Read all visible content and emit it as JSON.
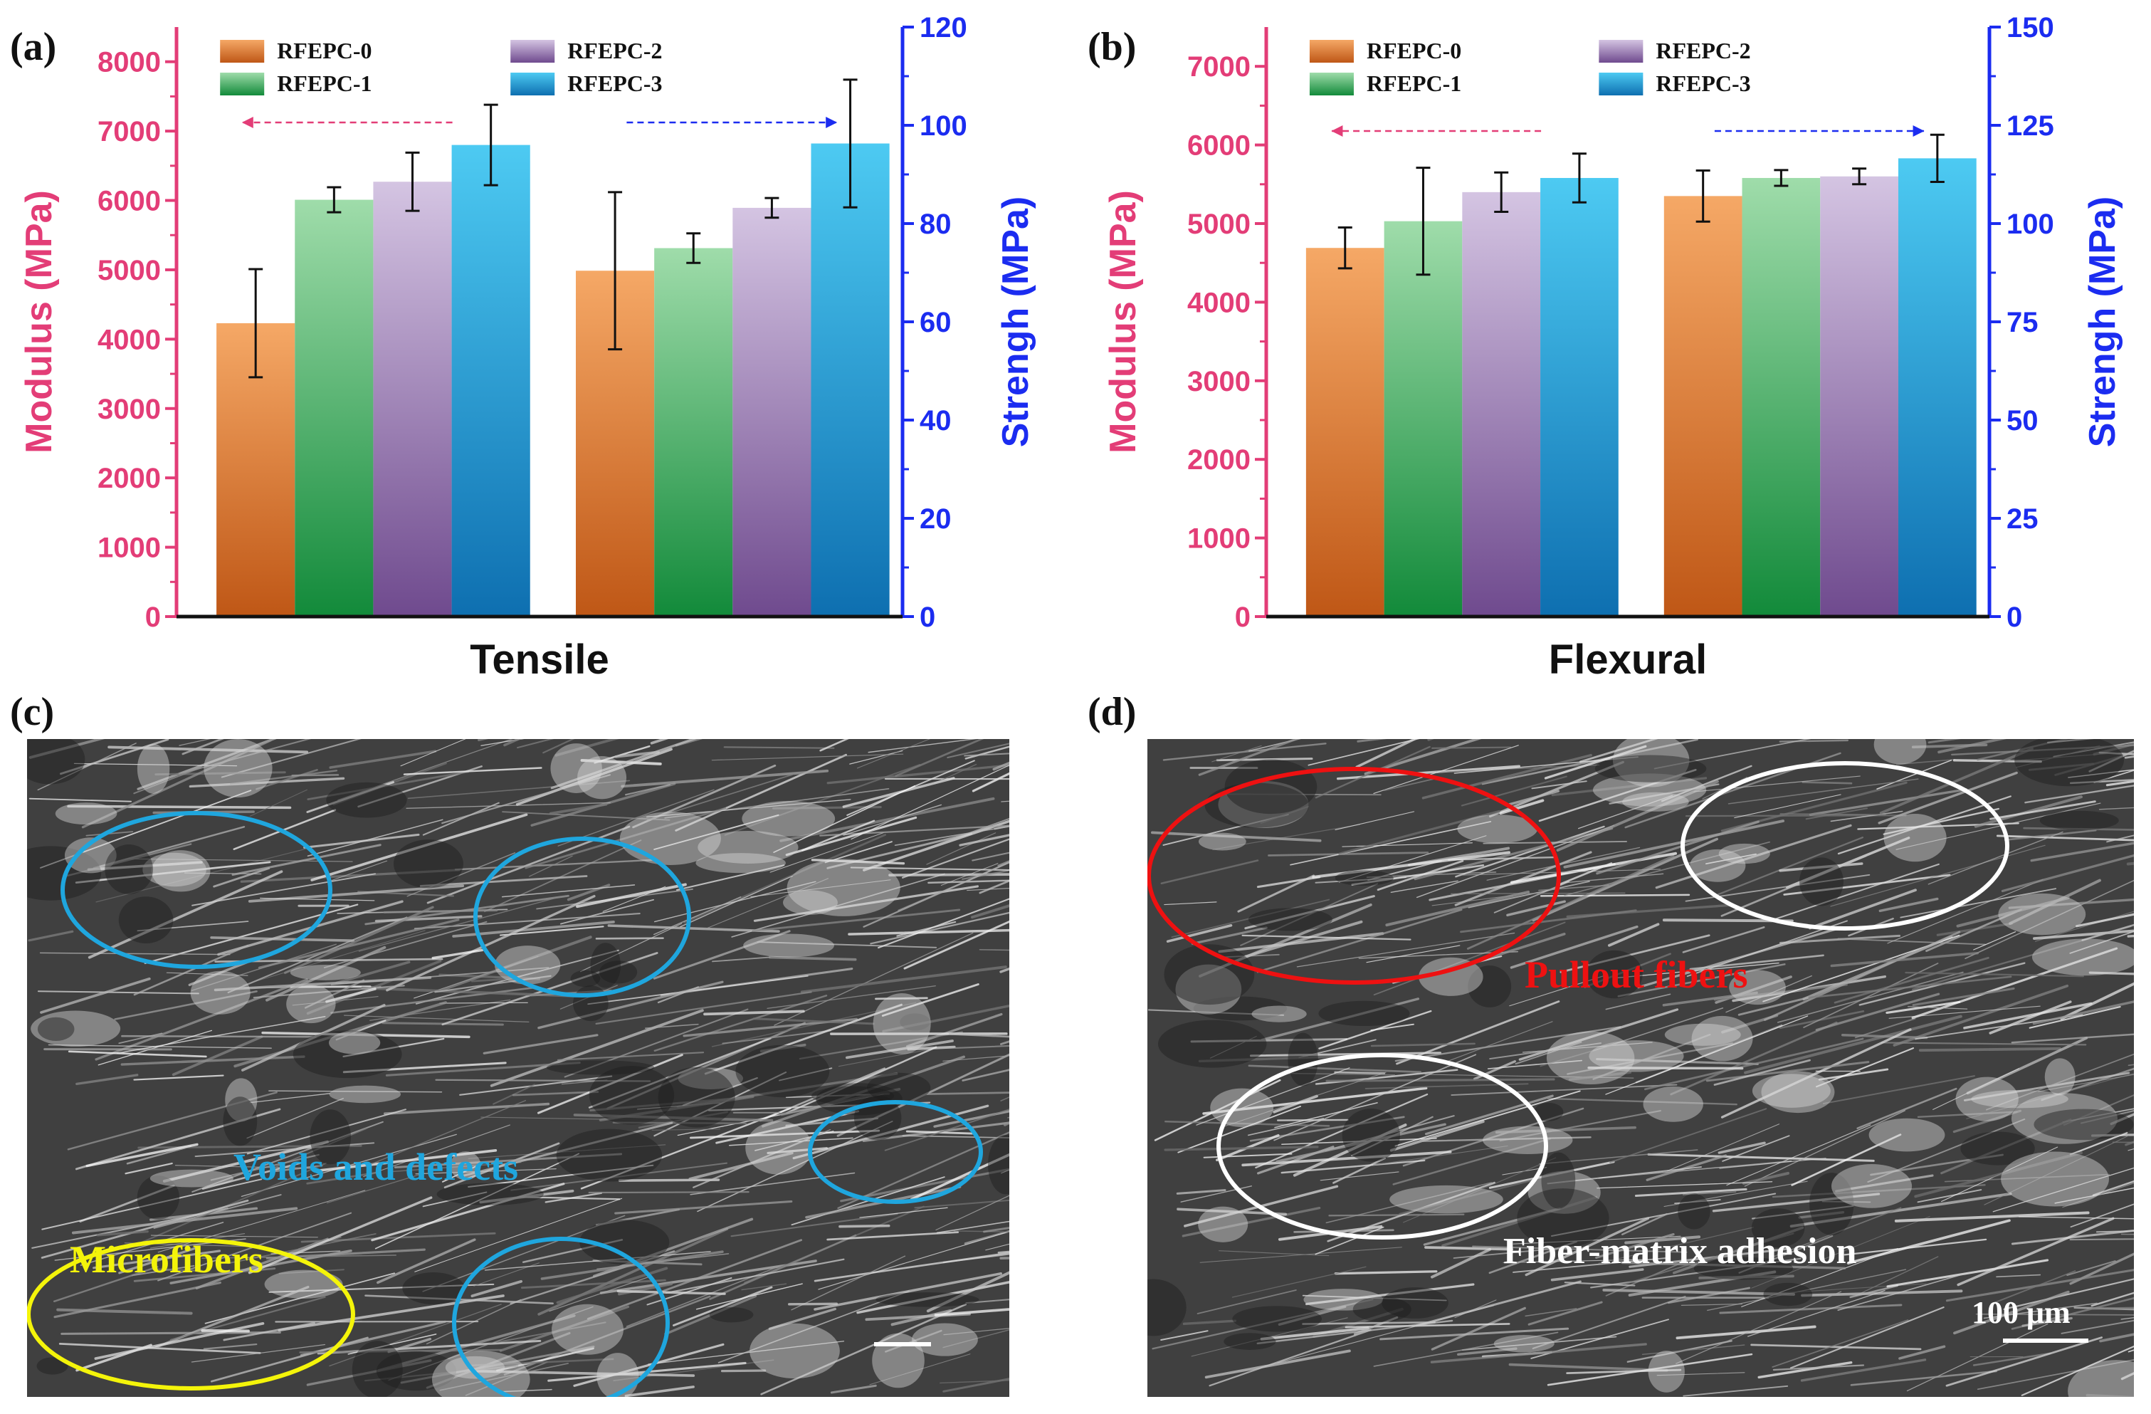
{
  "chart_data": [
    {
      "panel": "(a)",
      "type": "bar",
      "xlabel": "Tensile",
      "ylabel_left": "Modulus (MPa)",
      "ylabel_right": "Strengh (MPa)",
      "ylim_left": [
        0,
        8500
      ],
      "yticks_left": [
        0,
        1000,
        2000,
        3000,
        4000,
        5000,
        6000,
        7000,
        8000
      ],
      "ylim_right": [
        0,
        120
      ],
      "yticks_right": [
        0,
        20,
        40,
        60,
        80,
        100,
        120
      ],
      "groups": [
        {
          "name": "Modulus",
          "axis": "left",
          "values": [
            4230,
            6010,
            6270,
            6800
          ],
          "errors": [
            780,
            180,
            420,
            580
          ]
        },
        {
          "name": "Strength",
          "axis": "right",
          "values": [
            70.4,
            75.0,
            83.2,
            96.3
          ],
          "errors": [
            16.0,
            3.0,
            2.0,
            13.0
          ]
        }
      ],
      "series": [
        {
          "name": "RFEPC-0",
          "color_top": "#f5a866",
          "color_bottom": "#bf5716"
        },
        {
          "name": "RFEPC-1",
          "color_top": "#9fdcaa",
          "color_bottom": "#128a3a"
        },
        {
          "name": "RFEPC-2",
          "color_top": "#d4c4e2",
          "color_bottom": "#6f4a8e"
        },
        {
          "name": "RFEPC-3",
          "color_top": "#4dcaf2",
          "color_bottom": "#0e6fb0"
        }
      ],
      "legend_position": "top",
      "colors": {
        "left_axis": "#e33d77",
        "right_axis": "#1b2cf0"
      }
    },
    {
      "panel": "(b)",
      "type": "bar",
      "xlabel": "Flexural",
      "ylabel_left": "Modulus (MPa)",
      "ylabel_right": "Strengh (MPa)",
      "ylim_left": [
        0,
        7500
      ],
      "yticks_left": [
        0,
        1000,
        2000,
        3000,
        4000,
        5000,
        6000,
        7000
      ],
      "ylim_right": [
        0,
        150
      ],
      "yticks_right": [
        0,
        25,
        50,
        75,
        100,
        125,
        150
      ],
      "groups": [
        {
          "name": "Modulus",
          "axis": "left",
          "values": [
            4690,
            5030,
            5400,
            5580
          ],
          "errors": [
            260,
            680,
            250,
            310
          ]
        },
        {
          "name": "Strength",
          "axis": "right",
          "values": [
            107.0,
            111.6,
            112.0,
            116.6
          ],
          "errors": [
            6.5,
            2.0,
            2.0,
            6.0
          ]
        }
      ],
      "series": [
        {
          "name": "RFEPC-0",
          "color_top": "#f5a866",
          "color_bottom": "#bf5716"
        },
        {
          "name": "RFEPC-1",
          "color_top": "#9fdcaa",
          "color_bottom": "#128a3a"
        },
        {
          "name": "RFEPC-2",
          "color_top": "#d4c4e2",
          "color_bottom": "#6f4a8e"
        },
        {
          "name": "RFEPC-3",
          "color_top": "#4dcaf2",
          "color_bottom": "#0e6fb0"
        }
      ],
      "legend_position": "top",
      "colors": {
        "left_axis": "#e33d77",
        "right_axis": "#1b2cf0"
      }
    }
  ],
  "panels": {
    "a": "(a)",
    "b": "(b)",
    "c": "(c)",
    "d": "(d)"
  },
  "sem_c": {
    "annotations": {
      "voids": "Voids and defects",
      "microfibers": "Microfibers"
    },
    "colors": {
      "voids": "#1fa6de",
      "microfibers": "#f4f40a"
    }
  },
  "sem_d": {
    "annotations": {
      "pullout": "Pullout fibers",
      "adhesion": "Fiber-matrix adhesion",
      "scalebar": "100 μm"
    },
    "colors": {
      "pullout": "#ee1111",
      "adhesion": "#ffffff"
    }
  }
}
